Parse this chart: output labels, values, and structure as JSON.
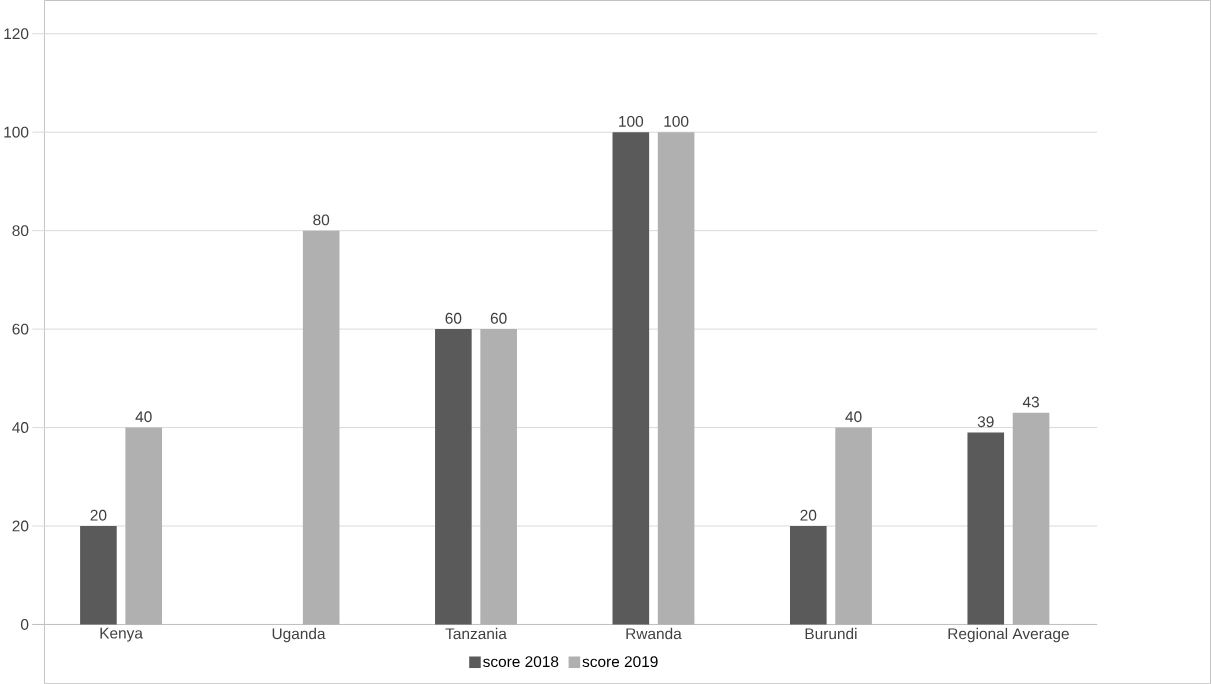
{
  "chart_data": {
    "type": "bar",
    "categories": [
      "Kenya",
      "Uganda",
      "Tanzania",
      "Rwanda",
      "Burundi",
      "Regional Average"
    ],
    "series": [
      {
        "name": "score 2018",
        "color": "#5a5a5a",
        "values": [
          20,
          null,
          60,
          100,
          20,
          39
        ]
      },
      {
        "name": "score 2019",
        "color": "#b0b0b0",
        "values": [
          40,
          80,
          60,
          100,
          40,
          43
        ]
      }
    ],
    "ylim": [
      0,
      120
    ],
    "yticks": [
      0,
      20,
      40,
      60,
      80,
      100,
      120
    ],
    "grid": "y",
    "legend": "bottom",
    "data_labels": true
  }
}
